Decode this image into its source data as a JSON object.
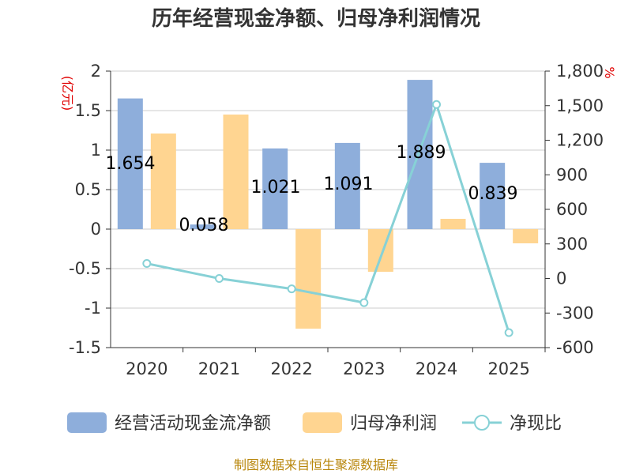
{
  "chart_data": {
    "type": "bar+line",
    "title": "历年经营现金净额、归母净利润情况",
    "categories": [
      "2020",
      "2021",
      "2022",
      "2023",
      "2024",
      "2025"
    ],
    "series": [
      {
        "name": "经营活动现金流净额",
        "type": "bar",
        "axis": "left",
        "color": "#8eaedb",
        "values": [
          1.654,
          0.058,
          1.021,
          1.091,
          1.889,
          0.839
        ]
      },
      {
        "name": "归母净利润",
        "type": "bar",
        "axis": "left",
        "color": "#ffd591",
        "values": [
          1.21,
          1.45,
          -1.26,
          -0.54,
          0.13,
          -0.18
        ]
      },
      {
        "name": "净现比",
        "type": "line",
        "axis": "right",
        "color": "#87d1d6",
        "values": [
          130,
          0,
          -90,
          -210,
          1510,
          -470
        ]
      }
    ],
    "data_labels": [
      "1.654",
      "0.058",
      "1.021",
      "1.091",
      "1.889",
      "0.839"
    ],
    "left_axis": {
      "unit": "(亿元)",
      "min": -1.5,
      "max": 2,
      "ticks": [
        "-1.5",
        "-1",
        "-0.5",
        "0",
        "0.5",
        "1",
        "1.5",
        "2"
      ]
    },
    "right_axis": {
      "unit": "%",
      "min": -600,
      "max": 1800,
      "ticks": [
        "-600",
        "-300",
        "0",
        "300",
        "600",
        "900",
        "1,200",
        "1,500",
        "1,800"
      ]
    },
    "legend": [
      "经营活动现金流净额",
      "归母净利润",
      "净现比"
    ],
    "source": "制图数据来自恒生聚源数据库"
  }
}
